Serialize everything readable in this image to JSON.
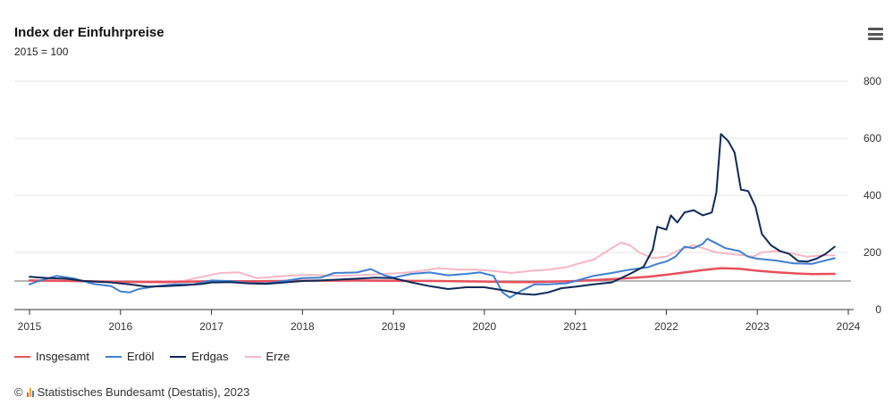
{
  "header": {
    "title": "Index der Einfuhrpreise",
    "subtitle": "2015 = 100"
  },
  "credits": {
    "copyright": "©",
    "text": "Statistisches Bundesamt (Destatis), 2023"
  },
  "icons": {
    "menu": "hamburger-menu-icon",
    "logo": "destatis-logo-icon"
  },
  "colors": {
    "Insgesamt": "#e8505b",
    "Erdöl": "#3f7fd1",
    "Erdgas": "#0d2a57",
    "Erze": "#f6b7c3",
    "baseline": "#8a8a8a",
    "grid": "#e6e6e6"
  },
  "chart_data": {
    "type": "line",
    "title": "Index der Einfuhrpreise",
    "subtitle": "2015 = 100",
    "x_unit": "year",
    "xlim": [
      2015,
      2024
    ],
    "ylim": [
      0,
      800
    ],
    "y_ticks": [
      0,
      200,
      400,
      600,
      800
    ],
    "x_ticks": [
      2015,
      2016,
      2017,
      2018,
      2019,
      2020,
      2021,
      2022,
      2023,
      2024
    ],
    "y_tick_labels": [
      "0",
      "200",
      "400",
      "600",
      "800"
    ],
    "x_tick_labels": [
      "2015",
      "2016",
      "2017",
      "2018",
      "2019",
      "2020",
      "2021",
      "2022",
      "2023",
      "2024"
    ],
    "reference_line": 100,
    "grid": true,
    "legend_position": "bottom-left",
    "series": [
      {
        "name": "Insgesamt",
        "points": [
          [
            2015.0,
            102
          ],
          [
            2015.5,
            100
          ],
          [
            2016.0,
            97
          ],
          [
            2016.5,
            96
          ],
          [
            2017.0,
            99
          ],
          [
            2017.5,
            99
          ],
          [
            2018.0,
            101
          ],
          [
            2018.5,
            102
          ],
          [
            2019.0,
            101
          ],
          [
            2019.5,
            100
          ],
          [
            2020.0,
            98
          ],
          [
            2020.3,
            96
          ],
          [
            2020.5,
            96
          ],
          [
            2021.0,
            100
          ],
          [
            2021.5,
            108
          ],
          [
            2021.8,
            115
          ],
          [
            2022.0,
            122
          ],
          [
            2022.2,
            130
          ],
          [
            2022.4,
            138
          ],
          [
            2022.6,
            145
          ],
          [
            2022.8,
            143
          ],
          [
            2023.0,
            136
          ],
          [
            2023.2,
            131
          ],
          [
            2023.4,
            127
          ],
          [
            2023.6,
            124
          ],
          [
            2023.85,
            125
          ]
        ]
      },
      {
        "name": "Erdöl",
        "points": [
          [
            2015.0,
            88
          ],
          [
            2015.1,
            100
          ],
          [
            2015.3,
            118
          ],
          [
            2015.5,
            108
          ],
          [
            2015.7,
            90
          ],
          [
            2015.9,
            82
          ],
          [
            2016.0,
            63
          ],
          [
            2016.1,
            60
          ],
          [
            2016.2,
            72
          ],
          [
            2016.4,
            82
          ],
          [
            2016.6,
            88
          ],
          [
            2016.8,
            88
          ],
          [
            2017.0,
            102
          ],
          [
            2017.2,
            100
          ],
          [
            2017.4,
            93
          ],
          [
            2017.6,
            92
          ],
          [
            2017.8,
            100
          ],
          [
            2018.0,
            110
          ],
          [
            2018.2,
            112
          ],
          [
            2018.35,
            128
          ],
          [
            2018.6,
            130
          ],
          [
            2018.75,
            142
          ],
          [
            2018.9,
            120
          ],
          [
            2019.0,
            112
          ],
          [
            2019.2,
            125
          ],
          [
            2019.4,
            130
          ],
          [
            2019.6,
            120
          ],
          [
            2019.8,
            125
          ],
          [
            2019.95,
            130
          ],
          [
            2020.1,
            118
          ],
          [
            2020.2,
            60
          ],
          [
            2020.28,
            42
          ],
          [
            2020.4,
            65
          ],
          [
            2020.55,
            88
          ],
          [
            2020.7,
            88
          ],
          [
            2020.9,
            92
          ],
          [
            2021.0,
            100
          ],
          [
            2021.2,
            118
          ],
          [
            2021.4,
            128
          ],
          [
            2021.6,
            140
          ],
          [
            2021.8,
            148
          ],
          [
            2021.9,
            160
          ],
          [
            2022.0,
            168
          ],
          [
            2022.1,
            185
          ],
          [
            2022.2,
            220
          ],
          [
            2022.3,
            215
          ],
          [
            2022.4,
            230
          ],
          [
            2022.45,
            248
          ],
          [
            2022.55,
            232
          ],
          [
            2022.65,
            215
          ],
          [
            2022.8,
            205
          ],
          [
            2022.9,
            185
          ],
          [
            2023.0,
            178
          ],
          [
            2023.2,
            172
          ],
          [
            2023.4,
            162
          ],
          [
            2023.6,
            160
          ],
          [
            2023.85,
            180
          ]
        ]
      },
      {
        "name": "Erdgas",
        "points": [
          [
            2015.0,
            115
          ],
          [
            2015.2,
            110
          ],
          [
            2015.4,
            108
          ],
          [
            2015.6,
            100
          ],
          [
            2015.9,
            95
          ],
          [
            2016.1,
            88
          ],
          [
            2016.3,
            80
          ],
          [
            2016.5,
            82
          ],
          [
            2016.7,
            85
          ],
          [
            2016.9,
            90
          ],
          [
            2017.0,
            95
          ],
          [
            2017.2,
            96
          ],
          [
            2017.4,
            92
          ],
          [
            2017.6,
            90
          ],
          [
            2017.8,
            95
          ],
          [
            2018.0,
            100
          ],
          [
            2018.2,
            102
          ],
          [
            2018.4,
            105
          ],
          [
            2018.6,
            108
          ],
          [
            2018.8,
            112
          ],
          [
            2019.0,
            110
          ],
          [
            2019.2,
            95
          ],
          [
            2019.4,
            82
          ],
          [
            2019.6,
            72
          ],
          [
            2019.8,
            78
          ],
          [
            2020.0,
            78
          ],
          [
            2020.2,
            68
          ],
          [
            2020.4,
            55
          ],
          [
            2020.55,
            52
          ],
          [
            2020.7,
            60
          ],
          [
            2020.85,
            75
          ],
          [
            2021.0,
            80
          ],
          [
            2021.2,
            88
          ],
          [
            2021.4,
            95
          ],
          [
            2021.6,
            125
          ],
          [
            2021.75,
            150
          ],
          [
            2021.85,
            210
          ],
          [
            2021.9,
            290
          ],
          [
            2022.0,
            280
          ],
          [
            2022.05,
            330
          ],
          [
            2022.12,
            305
          ],
          [
            2022.2,
            340
          ],
          [
            2022.3,
            348
          ],
          [
            2022.4,
            330
          ],
          [
            2022.5,
            340
          ],
          [
            2022.55,
            410
          ],
          [
            2022.6,
            615
          ],
          [
            2022.68,
            590
          ],
          [
            2022.75,
            550
          ],
          [
            2022.82,
            420
          ],
          [
            2022.9,
            415
          ],
          [
            2022.98,
            360
          ],
          [
            2023.05,
            265
          ],
          [
            2023.15,
            225
          ],
          [
            2023.25,
            205
          ],
          [
            2023.35,
            195
          ],
          [
            2023.45,
            170
          ],
          [
            2023.55,
            168
          ],
          [
            2023.65,
            178
          ],
          [
            2023.75,
            195
          ],
          [
            2023.85,
            220
          ]
        ]
      },
      {
        "name": "Erze",
        "points": [
          [
            2015.0,
            100
          ],
          [
            2015.3,
            102
          ],
          [
            2015.6,
            98
          ],
          [
            2015.9,
            96
          ],
          [
            2016.1,
            97
          ],
          [
            2016.4,
            100
          ],
          [
            2016.7,
            101
          ],
          [
            2016.9,
            115
          ],
          [
            2017.1,
            128
          ],
          [
            2017.3,
            130
          ],
          [
            2017.5,
            110
          ],
          [
            2017.7,
            115
          ],
          [
            2017.9,
            120
          ],
          [
            2018.1,
            122
          ],
          [
            2018.3,
            118
          ],
          [
            2018.6,
            120
          ],
          [
            2018.9,
            125
          ],
          [
            2019.1,
            128
          ],
          [
            2019.3,
            135
          ],
          [
            2019.5,
            145
          ],
          [
            2019.7,
            140
          ],
          [
            2019.9,
            140
          ],
          [
            2020.1,
            135
          ],
          [
            2020.3,
            128
          ],
          [
            2020.5,
            135
          ],
          [
            2020.7,
            140
          ],
          [
            2020.9,
            148
          ],
          [
            2021.0,
            158
          ],
          [
            2021.2,
            175
          ],
          [
            2021.35,
            205
          ],
          [
            2021.5,
            235
          ],
          [
            2021.6,
            225
          ],
          [
            2021.7,
            200
          ],
          [
            2021.85,
            180
          ],
          [
            2022.0,
            185
          ],
          [
            2022.15,
            210
          ],
          [
            2022.3,
            225
          ],
          [
            2022.4,
            215
          ],
          [
            2022.55,
            200
          ],
          [
            2022.7,
            195
          ],
          [
            2022.85,
            190
          ],
          [
            2022.95,
            185
          ],
          [
            2023.05,
            200
          ],
          [
            2023.2,
            205
          ],
          [
            2023.35,
            198
          ],
          [
            2023.55,
            185
          ],
          [
            2023.7,
            190
          ],
          [
            2023.85,
            190
          ]
        ]
      }
    ]
  }
}
